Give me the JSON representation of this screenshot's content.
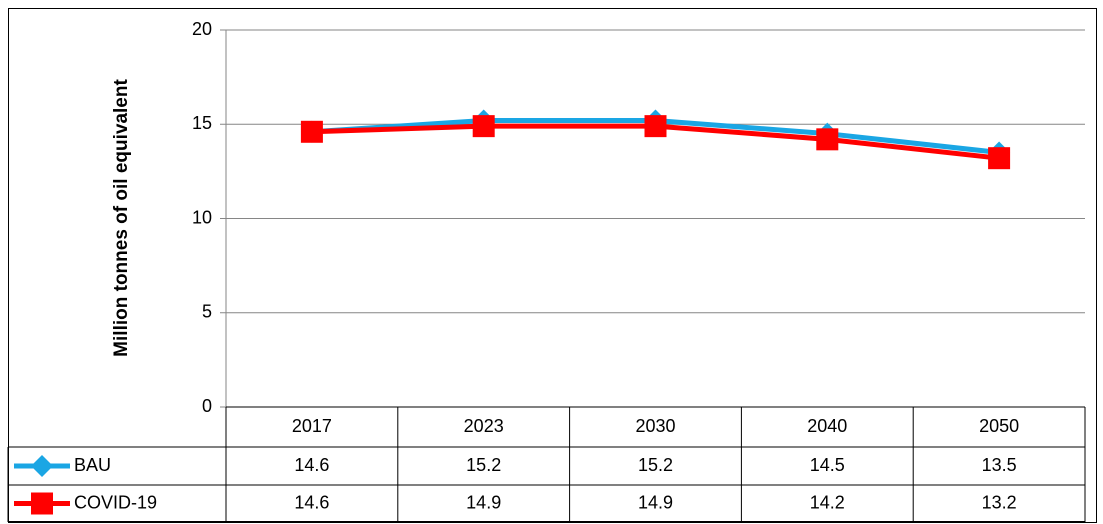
{
  "chart_data": {
    "type": "line",
    "y_label": "Million tonnes of oil equivalent",
    "categories": [
      "2017",
      "2023",
      "2030",
      "2040",
      "2050"
    ],
    "series": [
      {
        "name": "BAU",
        "color": "#1aa6e4",
        "marker": "diamond",
        "values": [
          14.6,
          15.2,
          15.2,
          14.5,
          13.5
        ]
      },
      {
        "name": "COVID-19",
        "color": "#ff0000",
        "marker": "square",
        "values": [
          14.6,
          14.9,
          14.9,
          14.2,
          13.2
        ]
      }
    ],
    "ylim": [
      0,
      20
    ],
    "yticks": [
      0,
      5,
      10,
      15,
      20
    ],
    "grid": true,
    "data_table": true
  }
}
